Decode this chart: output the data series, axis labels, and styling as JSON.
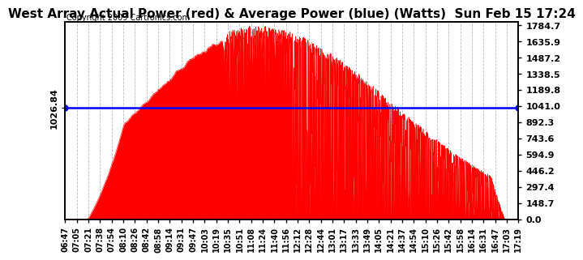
{
  "title": "West Array Actual Power (red) & Average Power (blue) (Watts)  Sun Feb 15 17:24",
  "copyright": "Copyright 2009 Cartronics.com",
  "average_power": 1026.84,
  "y_max": 1784.7,
  "y_min": 0.0,
  "ytick_labels_right": [
    "1784.7",
    "1635.9",
    "1487.2",
    "1338.5",
    "1189.8",
    "1041.0",
    "892.3",
    "743.6",
    "594.9",
    "446.2",
    "297.4",
    "148.7",
    "0.0"
  ],
  "ytick_values_right": [
    1784.7,
    1635.9,
    1487.2,
    1338.5,
    1189.8,
    1041.0,
    892.3,
    743.6,
    594.9,
    446.2,
    297.4,
    148.7,
    0.0
  ],
  "left_label": "1026.84",
  "xtick_labels": [
    "06:47",
    "07:05",
    "07:21",
    "07:38",
    "07:54",
    "08:10",
    "08:26",
    "08:42",
    "08:58",
    "09:14",
    "09:31",
    "09:47",
    "10:03",
    "10:19",
    "10:35",
    "10:51",
    "11:08",
    "11:24",
    "11:40",
    "11:56",
    "12:12",
    "12:28",
    "12:44",
    "13:01",
    "13:17",
    "13:33",
    "13:49",
    "14:05",
    "14:21",
    "14:37",
    "14:54",
    "15:10",
    "15:26",
    "15:42",
    "15:58",
    "16:14",
    "16:31",
    "16:47",
    "17:03",
    "17:19"
  ],
  "fill_color": "#FF0000",
  "line_color": "#0000FF",
  "background_color": "#FFFFFF",
  "grid_color": "#BBBBBB",
  "title_fontsize": 11,
  "copyright_fontsize": 7,
  "tick_fontsize": 7,
  "label_fontsize": 8
}
